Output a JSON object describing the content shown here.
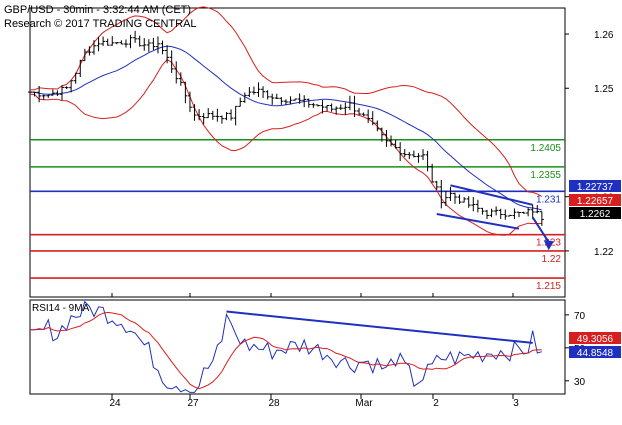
{
  "header": {
    "title": "GBP/USD - 30min - 3:32:44 AM (CET)",
    "credit": "Research © 2017 TRADING CENTRAL"
  },
  "rsi_panel": {
    "title": "RSI14 - 9MA"
  },
  "chart_data": [
    {
      "type": "candlestick",
      "instrument": "GBP/USD",
      "timeframe": "30min",
      "title": "GBP/USD - 30min - 3:32:44 AM (CET)",
      "x_labels": [
        "24",
        "27",
        "28",
        "Mar",
        "2",
        "3"
      ],
      "y_ticks": [
        1.26,
        1.25,
        1.23,
        1.22
      ],
      "ylim": [
        1.2115,
        1.2648
      ],
      "grid": false,
      "close_path": [
        [
          0,
          1.2493
        ],
        [
          4,
          1.2488
        ],
        [
          8,
          1.25
        ],
        [
          10,
          1.253
        ],
        [
          12,
          1.2565
        ],
        [
          15,
          1.2585
        ],
        [
          18,
          1.2583
        ],
        [
          22,
          1.2588
        ],
        [
          26,
          1.2578
        ],
        [
          28,
          1.2583
        ],
        [
          30,
          1.2555
        ],
        [
          33,
          1.2505
        ],
        [
          36,
          1.245
        ],
        [
          40,
          1.245
        ],
        [
          44,
          1.2448
        ],
        [
          47,
          1.249
        ],
        [
          50,
          1.2495
        ],
        [
          54,
          1.2482
        ],
        [
          58,
          1.2478
        ],
        [
          62,
          1.247
        ],
        [
          66,
          1.2462
        ],
        [
          70,
          1.247
        ],
        [
          74,
          1.244
        ],
        [
          78,
          1.24
        ],
        [
          82,
          1.238
        ],
        [
          86,
          1.2375
        ],
        [
          88,
          1.233
        ],
        [
          90,
          1.2295
        ],
        [
          92,
          1.2305
        ],
        [
          96,
          1.2285
        ],
        [
          100,
          1.227
        ],
        [
          104,
          1.227
        ],
        [
          108,
          1.2268
        ],
        [
          110,
          1.2275
        ],
        [
          112,
          1.2262
        ]
      ],
      "support_resistance": [
        {
          "level": 1.2405,
          "label": "1.2405",
          "color": "#1a8f1a"
        },
        {
          "level": 1.2355,
          "label": "1.2355",
          "color": "#1a8f1a"
        },
        {
          "level": 1.231,
          "label": "1.231",
          "color": "#1f2fbf"
        },
        {
          "level": 1.223,
          "label": "1.223",
          "color": "#d81f1f"
        },
        {
          "level": 1.22,
          "label": "1.22",
          "color": "#d81f1f"
        },
        {
          "level": 1.215,
          "label": "1.215",
          "color": "#d81f1f"
        }
      ],
      "channel": {
        "upper": [
          [
            92,
            1.2321
          ],
          [
            110,
            1.2285
          ]
        ],
        "lower": [
          [
            89,
            1.2268
          ],
          [
            107,
            1.2241
          ]
        ]
      },
      "forecast_arrow": {
        "from": [
          110,
          1.2262
        ],
        "to": [
          113.5,
          1.2205
        ]
      },
      "price_badges": [
        {
          "value": "1.22737",
          "bg": "#1f2fbf",
          "fg": "#ffffff"
        },
        {
          "value": "1.22657",
          "bg": "#d81f1f",
          "fg": "#ffffff"
        },
        {
          "value": "1.2262",
          "bg": "#000000",
          "fg": "#ffffff"
        }
      ],
      "colors": {
        "bollinger": "#d81f1f",
        "moving_average": "#1f2fbf",
        "candles": "#000000"
      }
    },
    {
      "type": "line",
      "title": "RSI14 - 9MA",
      "y_ticks": [
        70,
        50,
        30
      ],
      "ylim": [
        22,
        79
      ],
      "rsi_path": [
        [
          0,
          55
        ],
        [
          4,
          62
        ],
        [
          6,
          58
        ],
        [
          8,
          66
        ],
        [
          10,
          70
        ],
        [
          13,
          74
        ],
        [
          16,
          72
        ],
        [
          19,
          68
        ],
        [
          22,
          63
        ],
        [
          24,
          55
        ],
        [
          26,
          48
        ],
        [
          28,
          38
        ],
        [
          30,
          30
        ],
        [
          33,
          28
        ],
        [
          36,
          24
        ],
        [
          38,
          34
        ],
        [
          40,
          42
        ],
        [
          42,
          52
        ],
        [
          43,
          72
        ],
        [
          44,
          62
        ],
        [
          47,
          52
        ],
        [
          50,
          50
        ],
        [
          53,
          48
        ],
        [
          56,
          50
        ],
        [
          60,
          52
        ],
        [
          64,
          48
        ],
        [
          67,
          44
        ],
        [
          70,
          40
        ],
        [
          73,
          42
        ],
        [
          76,
          40
        ],
        [
          78,
          36
        ],
        [
          80,
          44
        ],
        [
          82,
          38
        ],
        [
          84,
          30
        ],
        [
          86,
          32
        ],
        [
          88,
          38
        ],
        [
          90,
          44
        ],
        [
          94,
          44
        ],
        [
          98,
          46
        ],
        [
          102,
          48
        ],
        [
          106,
          48
        ],
        [
          109,
          50
        ],
        [
          110,
          55
        ],
        [
          112,
          45
        ]
      ],
      "trendline": [
        [
          43,
          72
        ],
        [
          110,
          53
        ]
      ],
      "value_badges": [
        {
          "value": "49.3056",
          "bg": "#d81f1f",
          "fg": "#ffffff"
        },
        {
          "value": "44.8548",
          "bg": "#1f2fbf",
          "fg": "#ffffff"
        }
      ],
      "colors": {
        "rsi": "#1f2fbf",
        "signal_ma": "#d81f1f",
        "trendline": "#1f2fbf"
      }
    }
  ]
}
